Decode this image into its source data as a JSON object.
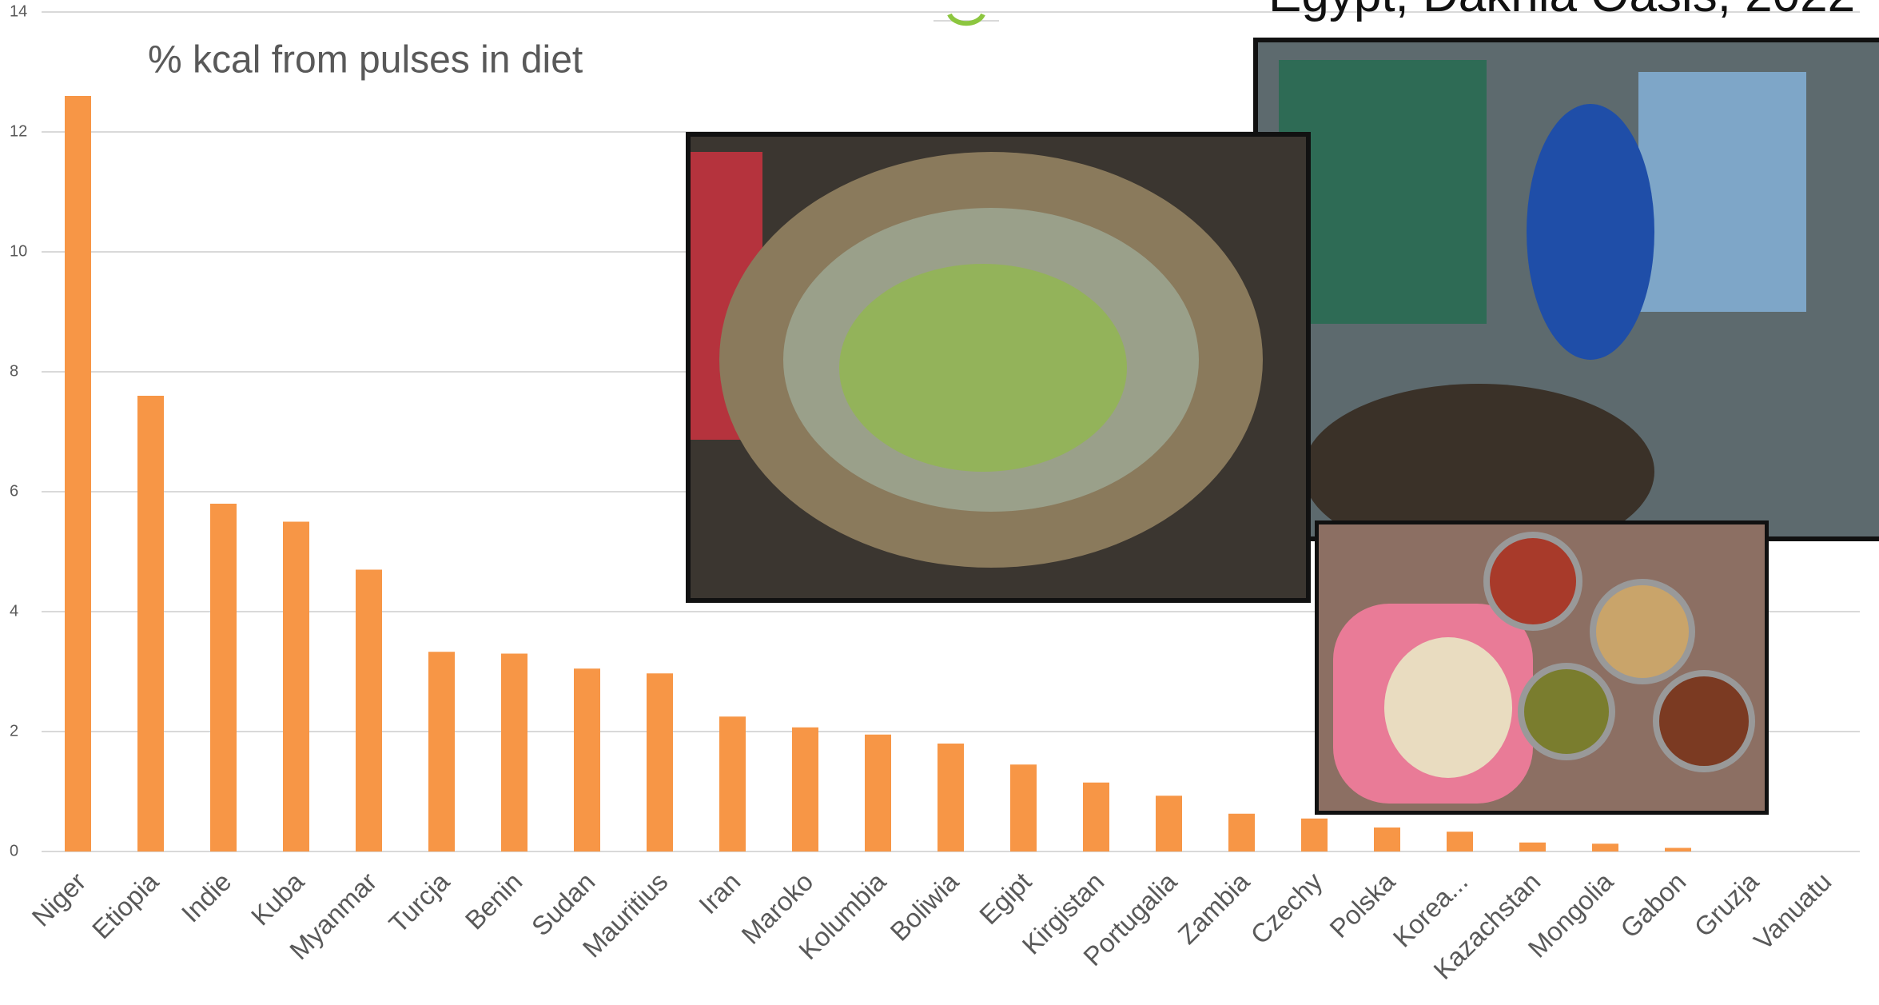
{
  "chart_data": {
    "type": "bar",
    "title": "% kcal from pulses in diet",
    "caption": "Egypt, Dakhla Oasis, 2022",
    "categories": [
      "Niger",
      "Etiopia",
      "Indie",
      "Kuba",
      "Myanmar",
      "Turcja",
      "Benin",
      "Sudan",
      "Mauritius",
      "Iran",
      "Maroko",
      "Kolumbia",
      "Boliwia",
      "Egipt",
      "Kirgistan",
      "Portugalia",
      "Zambia",
      "Czechy",
      "Polska",
      "Korea...",
      "Kazachstan",
      "Mongolia",
      "Gabon",
      "Gruzja",
      "Vanuatu"
    ],
    "values": [
      12.6,
      7.6,
      5.8,
      5.5,
      4.7,
      3.33,
      3.3,
      3.05,
      2.97,
      2.25,
      2.07,
      1.95,
      1.8,
      1.45,
      1.15,
      0.93,
      0.63,
      0.55,
      0.4,
      0.33,
      0.15,
      0.13,
      0.06,
      0,
      0
    ],
    "color": "#f79646",
    "ylim": [
      0,
      14
    ],
    "yticks": [
      0,
      2,
      4,
      6,
      8,
      10,
      12,
      14
    ],
    "grid": true
  }
}
